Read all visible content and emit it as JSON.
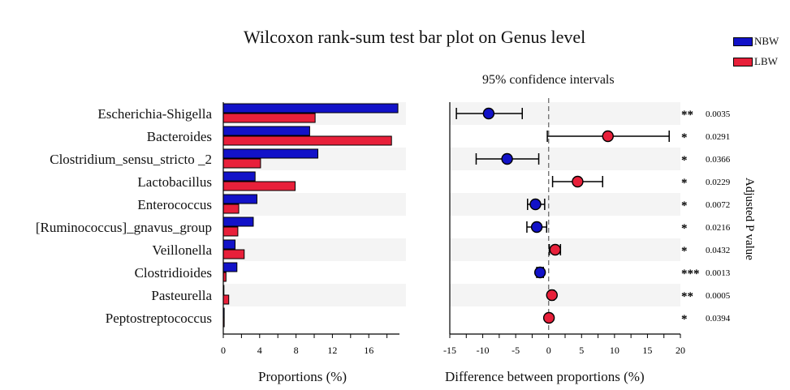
{
  "title": "Wilcoxon rank-sum test bar plot on Genus level",
  "legend": [
    {
      "name": "NBW",
      "color": "#1212c8"
    },
    {
      "name": "LBW",
      "color": "#e8203a"
    }
  ],
  "ci_title": "95% confidence intervals",
  "pvalue_axis_label": "Adjusted P value",
  "chart_data": [
    {
      "type": "bar",
      "orientation": "horizontal",
      "xlabel": "Proportions (%)",
      "xlim": [
        0,
        19
      ],
      "xticks": [
        "0",
        "4",
        "8",
        "12",
        "16"
      ],
      "categories": [
        "Escherichia-Shigella",
        "Bacteroides",
        "Clostridium_sensu_stricto _2",
        "Lactobacillus",
        "Enterococcus",
        "[Ruminococcus]_gnavus_group",
        "Veillonella",
        "Clostridioides",
        "Pasteurella",
        "Peptostreptococcus"
      ],
      "series": [
        {
          "name": "NBW",
          "color": "#1212c8",
          "values": [
            19.2,
            9.5,
            10.4,
            3.5,
            3.7,
            3.3,
            1.3,
            1.5,
            0.05,
            0.1
          ]
        },
        {
          "name": "LBW",
          "color": "#e8203a",
          "values": [
            10.1,
            18.5,
            4.1,
            7.9,
            1.7,
            1.6,
            2.3,
            0.3,
            0.6,
            0.1
          ]
        }
      ]
    },
    {
      "type": "scatter",
      "subtype": "confidence-interval",
      "title": "95% confidence intervals",
      "xlabel": "Difference between proportions (%)",
      "xlim": [
        -15,
        20
      ],
      "xticks": [
        "-15",
        "-10",
        "-5",
        "0",
        "5",
        "10",
        "15",
        "20"
      ],
      "categories": [
        "Escherichia-Shigella",
        "Bacteroides",
        "Clostridium_sensu_stricto _2",
        "Lactobacillus",
        "Enterococcus",
        "[Ruminococcus]_gnavus_group",
        "Veillonella",
        "Clostridioides",
        "Pasteurella",
        "Peptostreptococcus"
      ],
      "points": [
        {
          "estimate": -9.1,
          "ci_low": -14.0,
          "ci_high": -4.0,
          "color": "#1212c8",
          "sig": "**",
          "pvalue": "0.0035"
        },
        {
          "estimate": 9.0,
          "ci_low": -0.2,
          "ci_high": 18.3,
          "color": "#e8203a",
          "sig": "*",
          "pvalue": "0.0291"
        },
        {
          "estimate": -6.3,
          "ci_low": -11.0,
          "ci_high": -1.5,
          "color": "#1212c8",
          "sig": "*",
          "pvalue": "0.0366"
        },
        {
          "estimate": 4.4,
          "ci_low": 0.6,
          "ci_high": 8.2,
          "color": "#e8203a",
          "sig": "*",
          "pvalue": "0.0229"
        },
        {
          "estimate": -2.0,
          "ci_low": -3.2,
          "ci_high": -0.6,
          "color": "#1212c8",
          "sig": "*",
          "pvalue": "0.0072"
        },
        {
          "estimate": -1.8,
          "ci_low": -3.3,
          "ci_high": -0.3,
          "color": "#1212c8",
          "sig": "*",
          "pvalue": "0.0216"
        },
        {
          "estimate": 1.0,
          "ci_low": 0.1,
          "ci_high": 1.8,
          "color": "#e8203a",
          "sig": "*",
          "pvalue": "0.0432"
        },
        {
          "estimate": -1.3,
          "ci_low": -1.8,
          "ci_high": -0.8,
          "color": "#1212c8",
          "sig": "***",
          "pvalue": "0.0013"
        },
        {
          "estimate": 0.5,
          "ci_low": 0.2,
          "ci_high": 0.8,
          "color": "#e8203a",
          "sig": "**",
          "pvalue": "0.0005"
        },
        {
          "estimate": 0.05,
          "ci_low": -0.1,
          "ci_high": 0.2,
          "color": "#e8203a",
          "sig": "*",
          "pvalue": "0.0394"
        }
      ]
    }
  ]
}
